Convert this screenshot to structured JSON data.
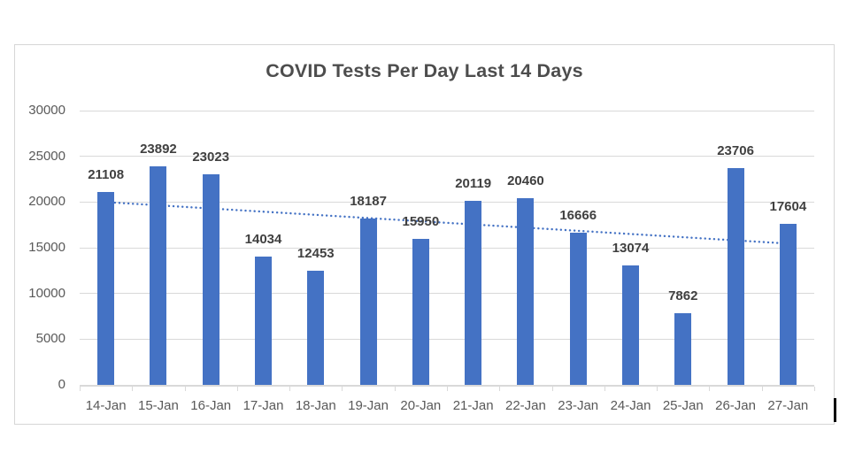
{
  "chart_data": {
    "type": "bar",
    "title": "COVID Tests Per Day Last 14 Days",
    "categories": [
      "14-Jan",
      "15-Jan",
      "16-Jan",
      "17-Jan",
      "18-Jan",
      "19-Jan",
      "20-Jan",
      "21-Jan",
      "22-Jan",
      "23-Jan",
      "24-Jan",
      "25-Jan",
      "26-Jan",
      "27-Jan"
    ],
    "values": [
      21108,
      23892,
      23023,
      14034,
      12453,
      18187,
      15950,
      20119,
      20460,
      16666,
      13074,
      7862,
      23706,
      17604
    ],
    "xlabel": "",
    "ylabel": "",
    "ylim": [
      0,
      30000
    ],
    "yticks": [
      0,
      5000,
      10000,
      15000,
      20000,
      25000,
      30000
    ],
    "grid": true,
    "legend": false,
    "data_labels": true,
    "trendline": {
      "type": "linear",
      "style": "dotted",
      "start_value": 19991,
      "end_value": 15457
    },
    "colors": {
      "bar": "#4472C4",
      "trendline": "#4472C4",
      "gridline": "#D9D9D9",
      "axis_text": "#595959",
      "data_label": "#404040",
      "title_text": "#4D4D4D",
      "chart_border": "#D6D6D6"
    }
  }
}
